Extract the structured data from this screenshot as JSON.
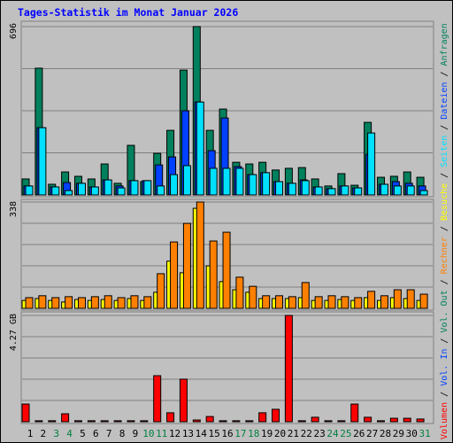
{
  "title": "Tages-Statistik im Monat Januar 2026",
  "days": [
    "1",
    "2",
    "3",
    "4",
    "5",
    "6",
    "7",
    "8",
    "9",
    "10",
    "11",
    "12",
    "13",
    "14",
    "15",
    "16",
    "17",
    "18",
    "19",
    "20",
    "21",
    "22",
    "23",
    "24",
    "25",
    "26",
    "27",
    "28",
    "29",
    "30",
    "31"
  ],
  "weekend_days": [
    "3",
    "4",
    "10",
    "11",
    "17",
    "18",
    "24",
    "25",
    "31"
  ],
  "day_color": "#000000",
  "weekend_color": "#008040",
  "legend_separator": " / ",
  "chart_data": [
    {
      "type": "bar",
      "ylim": [
        0,
        696
      ],
      "yticks": [
        696
      ],
      "grid": true,
      "series": [
        {
          "name": "Anfragen",
          "color": "#00805c",
          "values": [
            66,
            524,
            44,
            95,
            77,
            66,
            128,
            48,
            205,
            55,
            172,
            267,
            516,
            696,
            267,
            355,
            135,
            128,
            135,
            103,
            110,
            113,
            66,
            37,
            88,
            40,
            300,
            73,
            77,
            95,
            73
          ]
        },
        {
          "name": "Dateien",
          "color": "#0040ff",
          "values": [
            37,
            278,
            33,
            51,
            48,
            33,
            62,
            37,
            59,
            59,
            124,
            157,
            348,
            384,
            183,
            318,
            117,
            84,
            92,
            55,
            48,
            62,
            33,
            26,
            37,
            29,
            168,
            44,
            55,
            48,
            37
          ]
        },
        {
          "name": "Seiten",
          "color": "#00e0ff",
          "values": [
            37,
            278,
            33,
            18,
            48,
            33,
            62,
            29,
            59,
            59,
            37,
            84,
            121,
            384,
            110,
            110,
            110,
            84,
            92,
            55,
            48,
            59,
            33,
            26,
            37,
            29,
            256,
            44,
            37,
            37,
            18
          ]
        }
      ]
    },
    {
      "type": "bar",
      "ylim": [
        0,
        338
      ],
      "yticks": [
        338
      ],
      "grid": true,
      "series": [
        {
          "name": "Besuche",
          "color": "#ffff00",
          "values": [
            25,
            31,
            25,
            20,
            28,
            25,
            28,
            25,
            31,
            25,
            51,
            150,
            113,
            318,
            135,
            85,
            59,
            51,
            31,
            31,
            31,
            34,
            25,
            25,
            28,
            25,
            34,
            25,
            34,
            31,
            25
          ]
        },
        {
          "name": "Rechner",
          "color": "#ff8000",
          "values": [
            34,
            40,
            34,
            37,
            34,
            37,
            40,
            34,
            40,
            37,
            110,
            211,
            270,
            338,
            214,
            242,
            99,
            70,
            40,
            40,
            37,
            82,
            37,
            40,
            37,
            34,
            54,
            40,
            59,
            59,
            45
          ]
        }
      ]
    },
    {
      "type": "bar",
      "ylim": [
        0,
        4.27
      ],
      "yticks": [
        {
          "value": 4.27,
          "label": "4.27 GB"
        }
      ],
      "grid": true,
      "series": [
        {
          "name": "Volumen",
          "color": "#ff0000",
          "values": [
            0.71,
            0.04,
            0.04,
            0.32,
            0.04,
            0.04,
            0.04,
            0.04,
            0.04,
            0.04,
            1.85,
            0.36,
            1.71,
            0.07,
            0.21,
            0.04,
            0.04,
            0.04,
            0.36,
            0.5,
            4.27,
            0.04,
            0.18,
            0.04,
            0.04,
            0.71,
            0.18,
            0.04,
            0.14,
            0.14,
            0.11
          ]
        },
        {
          "name": "Vol. In",
          "color": "#0040ff",
          "values": [
            0,
            0,
            0,
            0,
            0,
            0,
            0,
            0,
            0,
            0,
            0,
            0,
            0,
            0,
            0,
            0,
            0,
            0,
            0,
            0,
            0,
            0,
            0,
            0,
            0,
            0,
            0,
            0,
            0,
            0,
            0
          ]
        },
        {
          "name": "Vol. Out",
          "color": "#00805c",
          "values": [
            0,
            0,
            0,
            0,
            0,
            0,
            0,
            0,
            0,
            0,
            0,
            0,
            0,
            0,
            0,
            0,
            0,
            0,
            0,
            0,
            0,
            0,
            0,
            0,
            0,
            0,
            0,
            0,
            0,
            0,
            0
          ]
        }
      ]
    }
  ]
}
